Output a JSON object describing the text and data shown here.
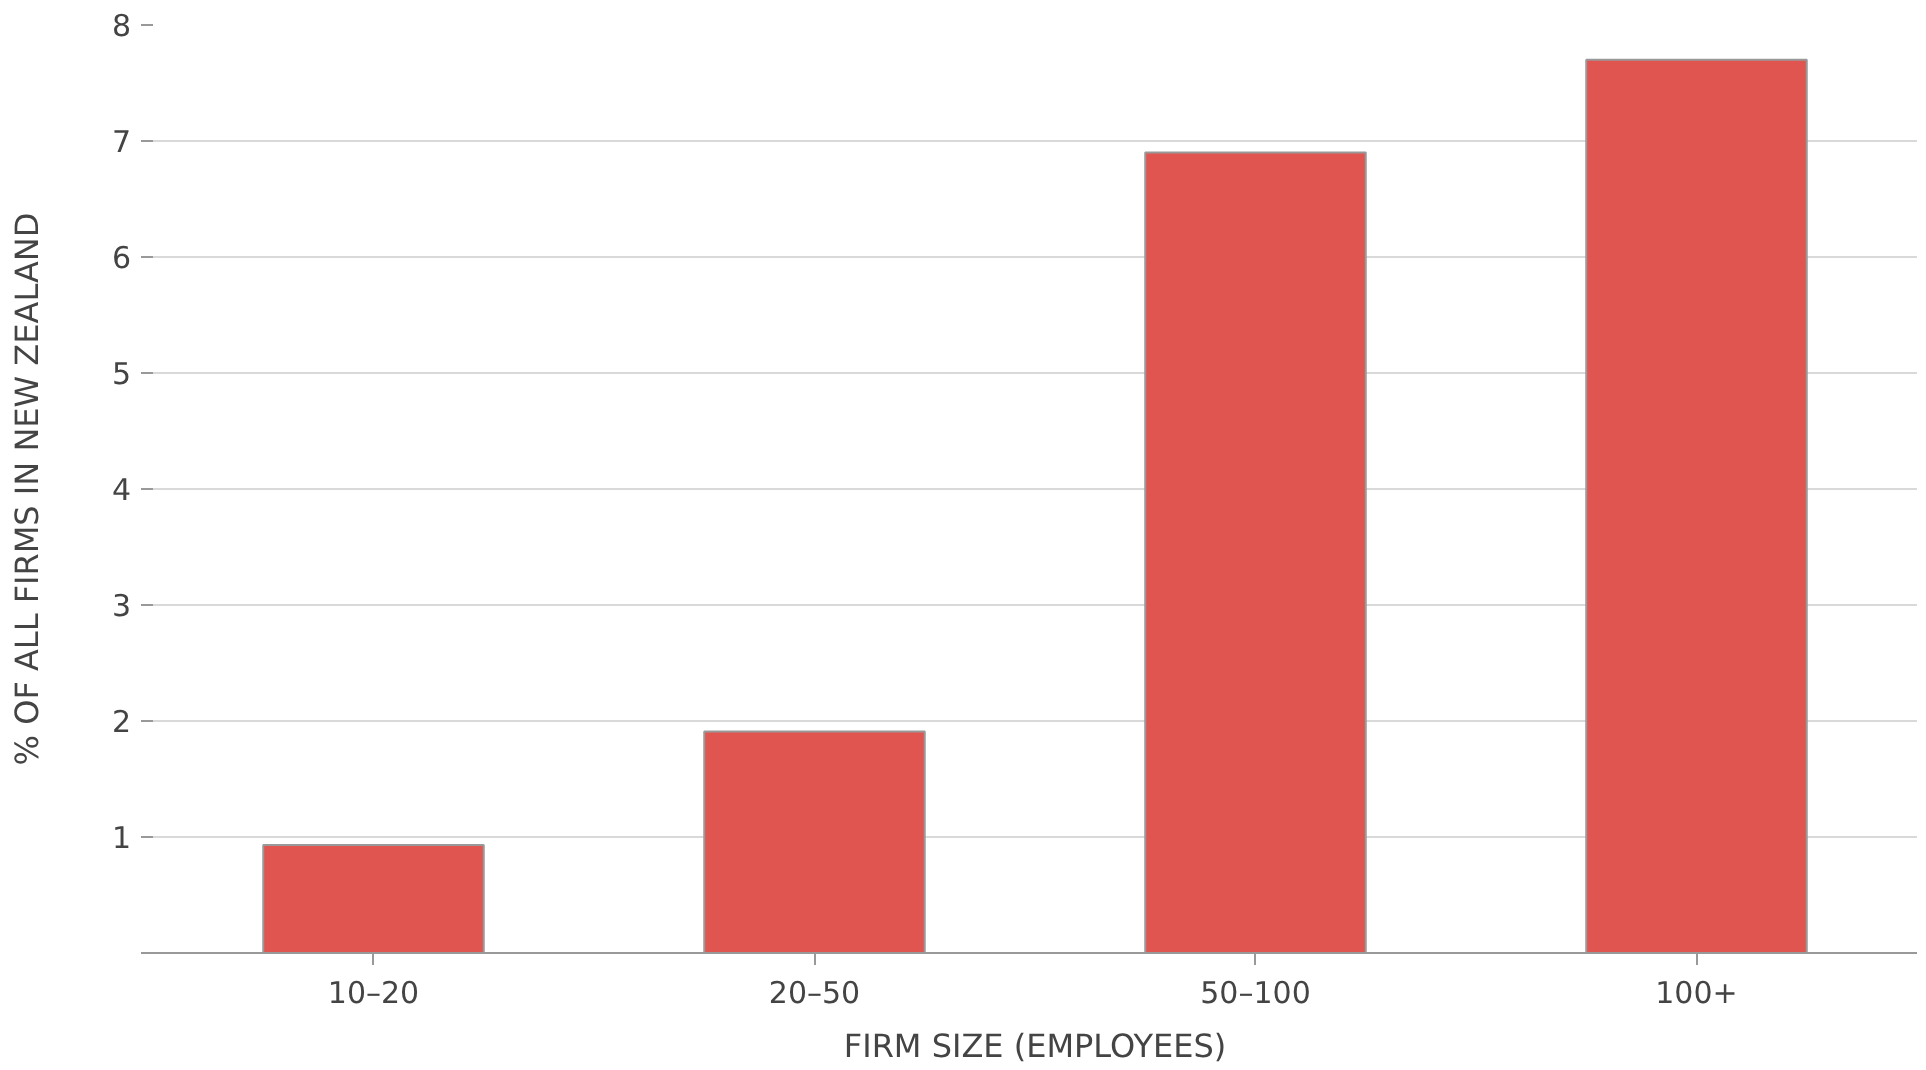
{
  "chart_data": {
    "type": "bar",
    "xlabel": "FIRM SIZE (EMPLOYEES)",
    "ylabel": "% OF ALL FIRMS IN NEW ZEALAND",
    "categories": [
      "10–20",
      "20–50",
      "50–100",
      "100+"
    ],
    "values": [
      0.93,
      1.91,
      6.9,
      7.7
    ],
    "color": "#e05550",
    "ylim": [
      0,
      8
    ],
    "yticks": [
      {
        "value": 0,
        "label": null
      },
      1,
      2,
      3,
      4,
      5,
      6,
      7,
      8
    ],
    "grid": "y"
  }
}
